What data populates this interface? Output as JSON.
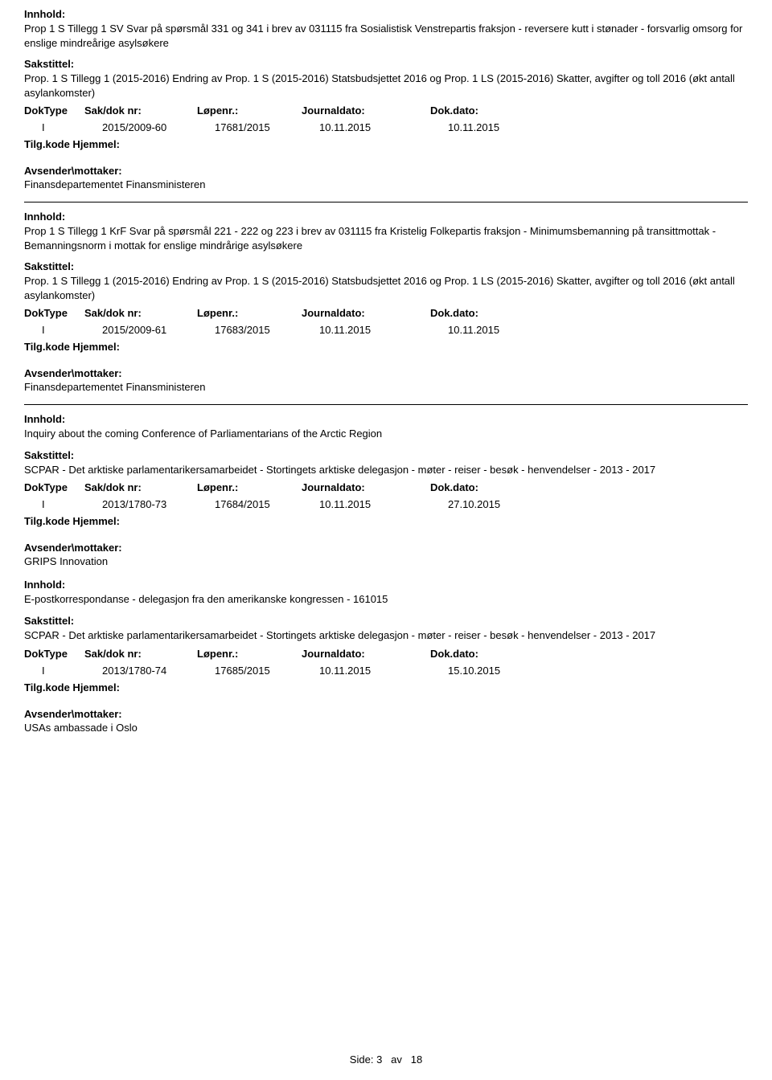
{
  "labels": {
    "innhold": "Innhold:",
    "sakstittel": "Sakstittel:",
    "tilg": "Tilg.kode Hjemmel:",
    "avsender": "Avsender\\mottaker:",
    "hdr_doktype": "DokType",
    "hdr_sakdok": "Sak/dok nr:",
    "hdr_lopenr": "Løpenr.:",
    "hdr_jdato": "Journaldato:",
    "hdr_ddato": "Dok.dato:"
  },
  "entries": [
    {
      "innhold": "Prop 1 S Tillegg 1 SV Svar på spørsmål 331 og 341 i brev av 031115 fra Sosialistisk Venstrepartis fraksjon - reversere kutt i stønader - forsvarlig omsorg for enslige mindreårige asylsøkere",
      "sakstittel": "Prop. 1 S Tillegg 1 (2015-2016) Endring av Prop. 1 S (2015-2016) Statsbudsjettet 2016 og Prop. 1 LS (2015-2016) Skatter, avgifter og toll 2016 (økt antall asylankomster)",
      "doktype": "I",
      "sakdok": "2015/2009-60",
      "lopenr": "17681/2015",
      "jdato": "10.11.2015",
      "ddato": "10.11.2015",
      "avsender": "Finansdepartementet Finansministeren",
      "sep_after": true,
      "show_innhold_label_after": true
    },
    {
      "innhold": "Prop 1 S Tillegg 1 KrF Svar på spørsmål 221 - 222 og 223 i brev av 031115 fra Kristelig Folkepartis fraksjon - Minimumsbemanning på transittmottak - Bemanningsnorm i mottak for enslige mindrårige asylsøkere",
      "sakstittel": "Prop. 1 S Tillegg 1 (2015-2016) Endring av Prop. 1 S (2015-2016) Statsbudsjettet 2016 og Prop. 1 LS (2015-2016) Skatter, avgifter og toll 2016 (økt antall asylankomster)",
      "doktype": "I",
      "sakdok": "2015/2009-61",
      "lopenr": "17683/2015",
      "jdato": "10.11.2015",
      "ddato": "10.11.2015",
      "avsender": "Finansdepartementet Finansministeren",
      "sep_after": true,
      "show_innhold_label_after": true
    },
    {
      "innhold": "Inquiry about the coming Conference of Parliamentarians of the Arctic Region",
      "sakstittel": "SCPAR - Det arktiske parlamentarikersamarbeidet - Stortingets arktiske delegasjon - møter - reiser - besøk - henvendelser - 2013 - 2017",
      "doktype": "I",
      "sakdok": "2013/1780-73",
      "lopenr": "17684/2015",
      "jdato": "10.11.2015",
      "ddato": "27.10.2015",
      "avsender": "GRIPS Innovation",
      "sep_after": false,
      "show_innhold_label_after": true
    },
    {
      "innhold": "E-postkorrespondanse - delegasjon fra den amerikanske kongressen - 161015",
      "sakstittel": "SCPAR - Det arktiske parlamentarikersamarbeidet - Stortingets arktiske delegasjon - møter - reiser - besøk - henvendelser - 2013 - 2017",
      "doktype": "I",
      "sakdok": "2013/1780-74",
      "lopenr": "17685/2015",
      "jdato": "10.11.2015",
      "ddato": "15.10.2015",
      "avsender": "USAs ambassade i Oslo",
      "sep_after": false,
      "show_innhold_label_after": false
    }
  ],
  "footer": {
    "prefix": "Side:",
    "page": "3",
    "mid": "av",
    "total": "18"
  }
}
